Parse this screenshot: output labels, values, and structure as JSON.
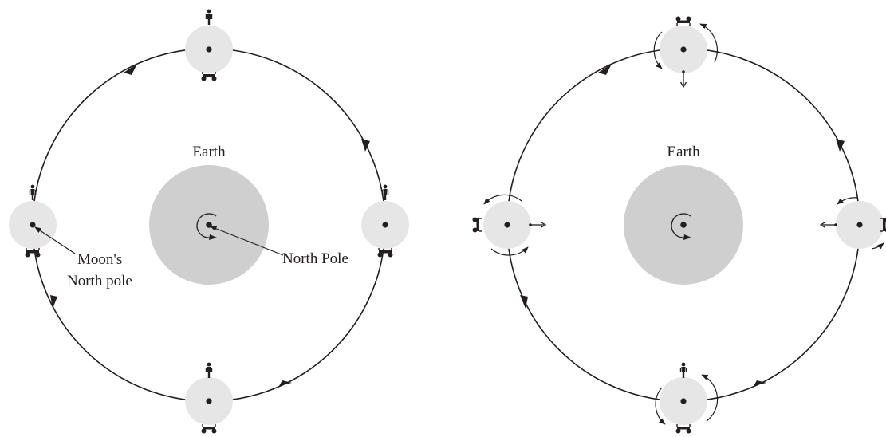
{
  "colors": {
    "ink": "#231f20",
    "earth": "#cfcfcf",
    "moon": "#e6e6e6",
    "background": "#ffffff"
  },
  "left_panel": {
    "earth_label": "Earth",
    "north_pole_label": "North Pole",
    "moon_pole_label_line1": "Moon's",
    "moon_pole_label_line2": "North pole"
  },
  "right_panel": {
    "earth_label": "Earth"
  },
  "icons": [
    "person-icon",
    "rover-icon",
    "rotation-arrow-icon",
    "orbit-direction-arrow-icon"
  ]
}
